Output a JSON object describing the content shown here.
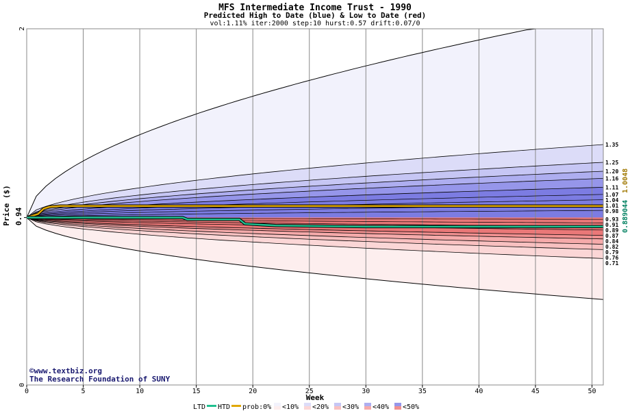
{
  "chart_data": {
    "type": "area",
    "title": "MFS Intermediate Income Trust - 1990",
    "subtitle": "Predicted High to Date (blue) &  Low to Date (red)",
    "params": "vol:1.11% iter:2000 step:10 hurst:0.57 drift:0.07/0",
    "xlabel": "Week",
    "ylabel": "Price ($)",
    "xlim": [
      0,
      51
    ],
    "ylim": [
      0,
      2
    ],
    "x_ticks": [
      0,
      5,
      10,
      15,
      20,
      25,
      30,
      35,
      40,
      45,
      50
    ],
    "y_ticks": [
      0,
      2
    ],
    "grid": true,
    "start_price": 0.94,
    "start_price_label": "0.94",
    "right_value_labels": [
      {
        "text": "0.889044",
        "color": "#008060"
      },
      {
        "text": "1.0048",
        "color": "#a07800"
      }
    ],
    "quantile_labels": [
      "1.35",
      "1.25",
      "1.20",
      "1.16",
      "1.11",
      "1.07",
      "1.04",
      "1.01",
      "0.98",
      "0.93",
      "0.91",
      "0.89",
      "0.87",
      "0.84",
      "0.82",
      "0.79",
      "0.76",
      "0.71"
    ],
    "high_envelope": [
      {
        "level": "0%",
        "color": "#f2f2fc",
        "end": 2.08
      },
      {
        "level": "10%",
        "color": "#dcdcf8",
        "end": 1.35
      },
      {
        "level": "20%",
        "color": "#c6c6f4",
        "end": 1.25
      },
      {
        "level": "30%",
        "color": "#aeaef0",
        "end": 1.2
      },
      {
        "level": "40%",
        "color": "#9696ea",
        "end": 1.16
      },
      {
        "level": "50%",
        "color": "#7c7ce2",
        "end": 1.11
      }
    ],
    "high_inner_lines_end": [
      1.07,
      1.04,
      1.01,
      0.98
    ],
    "low_envelope": [
      {
        "level": "0%",
        "color": "#fdeeee",
        "end": 0.48
      },
      {
        "level": "10%",
        "color": "#fbd6d6",
        "end": 0.71
      },
      {
        "level": "20%",
        "color": "#f8c0c0",
        "end": 0.76
      },
      {
        "level": "30%",
        "color": "#f5aaaa",
        "end": 0.79
      },
      {
        "level": "40%",
        "color": "#f09090",
        "end": 0.82
      },
      {
        "level": "50%",
        "color": "#ea7878",
        "end": 0.84
      }
    ],
    "low_inner_lines_end": [
      0.87,
      0.89,
      0.91,
      0.93
    ],
    "series": [
      {
        "name": "HTD",
        "color": "#e0a800",
        "x": [
          0,
          1,
          1.5,
          2,
          3,
          5,
          10,
          20,
          30,
          40,
          51
        ],
        "y": [
          0.94,
          0.96,
          0.99,
          1.0,
          1.0048,
          1.0048,
          1.0048,
          1.0048,
          1.0048,
          1.0048,
          1.0048
        ]
      },
      {
        "name": "LTD",
        "color": "#20c090",
        "x": [
          0,
          2,
          5,
          13.8,
          14.2,
          18.8,
          19.3,
          22,
          30,
          40,
          51
        ],
        "y": [
          0.94,
          0.94,
          0.94,
          0.94,
          0.93,
          0.93,
          0.905,
          0.895,
          0.889,
          0.889,
          0.889044
        ]
      }
    ]
  },
  "credit": {
    "copyright": "©www.textbiz.org",
    "org": "The Research Foundation of SUNY"
  },
  "legend": {
    "ltd": "LTD",
    "htd": "HTD",
    "prob": "prob:0%",
    "bins": [
      {
        "label": "<10%",
        "color": "#f2f2fc",
        "color2": "#fdeeee"
      },
      {
        "label": "<20%",
        "color": "#dcdcf8",
        "color2": "#fbd6d6"
      },
      {
        "label": "<30%",
        "color": "#c6c6f4",
        "color2": "#f8c0c0"
      },
      {
        "label": "<40%",
        "color": "#aeaef0",
        "color2": "#f5aaaa"
      },
      {
        "label": "<50%",
        "color": "#9696ea",
        "color2": "#f09090"
      }
    ],
    "ltd_color": "#20c090",
    "htd_color": "#e0a800"
  }
}
